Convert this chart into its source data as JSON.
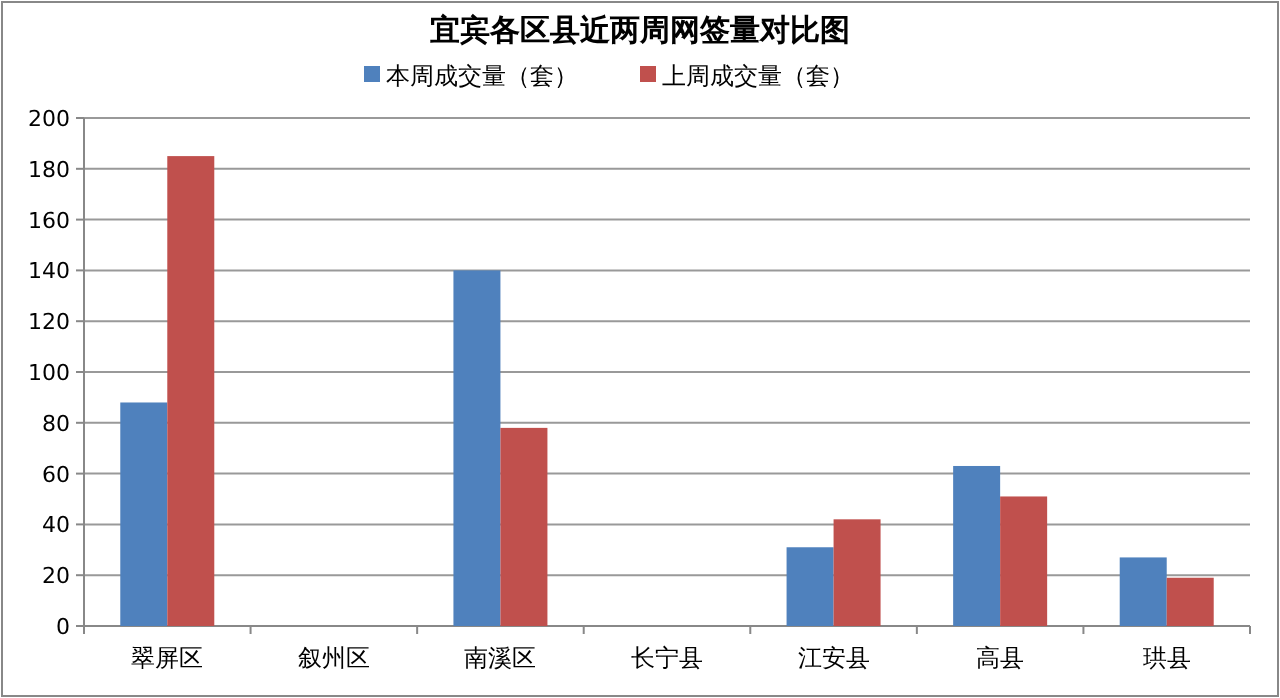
{
  "chart_data": {
    "type": "bar",
    "title": "宜宾各区县近两周网签量对比图",
    "categories": [
      "翠屏区",
      "叙州区",
      "南溪区",
      "长宁县",
      "江安县",
      "高县",
      "珙县"
    ],
    "series": [
      {
        "name": "本周成交量（套）",
        "color": "#4f81bd",
        "values": [
          88,
          null,
          140,
          null,
          31,
          63,
          27
        ]
      },
      {
        "name": "上周成交量（套）",
        "color": "#c0504d",
        "values": [
          185,
          null,
          78,
          null,
          42,
          51,
          19
        ]
      }
    ],
    "ylim": [
      0,
      200
    ],
    "yticks": [
      0,
      20,
      40,
      60,
      80,
      100,
      120,
      140,
      160,
      180,
      200
    ],
    "grid": "y",
    "legend": "top"
  }
}
